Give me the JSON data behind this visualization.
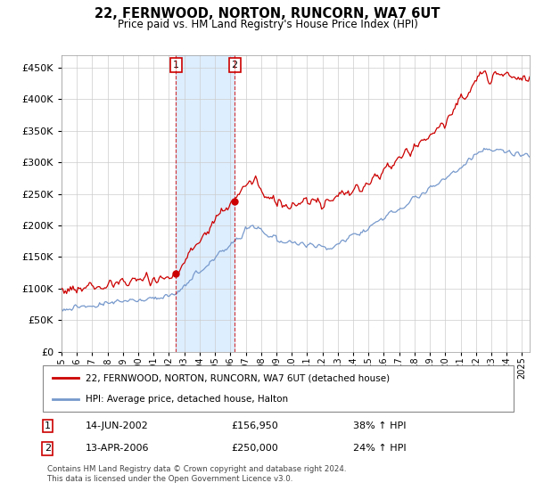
{
  "title": "22, FERNWOOD, NORTON, RUNCORN, WA7 6UT",
  "subtitle": "Price paid vs. HM Land Registry's House Price Index (HPI)",
  "ylabel_ticks": [
    0,
    50000,
    100000,
    150000,
    200000,
    250000,
    300000,
    350000,
    400000,
    450000
  ],
  "ylim": [
    0,
    470000
  ],
  "xlim_start": 1995.0,
  "xlim_end": 2025.5,
  "line1_color": "#cc0000",
  "line2_color": "#7799cc",
  "transaction1_date": "14-JUN-2002",
  "transaction1_price": 156950,
  "transaction1_hpi": "38% ↑ HPI",
  "transaction1_year": 2002.45,
  "transaction2_date": "13-APR-2006",
  "transaction2_price": 250000,
  "transaction2_hpi": "24% ↑ HPI",
  "transaction2_year": 2006.28,
  "legend_line1": "22, FERNWOOD, NORTON, RUNCORN, WA7 6UT (detached house)",
  "legend_line2": "HPI: Average price, detached house, Halton",
  "footnote": "Contains HM Land Registry data © Crown copyright and database right 2024.\nThis data is licensed under the Open Government Licence v3.0.",
  "background_color": "#ffffff",
  "plot_bg_color": "#ffffff",
  "grid_color": "#cccccc",
  "span_color": "#ddeeff"
}
